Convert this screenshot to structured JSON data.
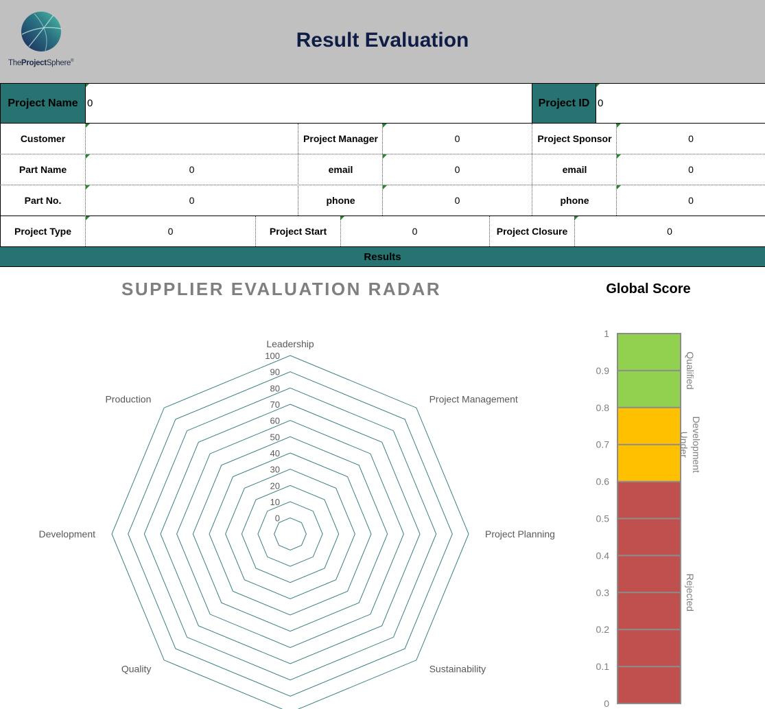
{
  "header": {
    "logo_text_prefix": "The",
    "logo_text_bold": "Project",
    "logo_text_suffix": "Sphere",
    "logo_mark": "®",
    "title": "Result Evaluation"
  },
  "project": {
    "name_label": "Project Name",
    "name_value": "0",
    "id_label": "Project ID",
    "id_value": "0"
  },
  "info_rows": [
    {
      "l1": "Customer",
      "v1": "",
      "l2": "Project Manager",
      "v2": "0",
      "l3": "Project Sponsor",
      "v3": "0"
    },
    {
      "l1": "Part Name",
      "v1": "0",
      "l2": "email",
      "v2": "0",
      "l3": "email",
      "v3": "0"
    },
    {
      "l1": "Part No.",
      "v1": "0",
      "l2": "phone",
      "v2": "0",
      "l3": "phone",
      "v3": "0"
    }
  ],
  "dates_row": {
    "type_label": "Project Type",
    "type_value": "0",
    "start_label": "Project Start",
    "start_value": "0",
    "closure_label": "Project Closure",
    "closure_value": "0"
  },
  "results_label": "Results",
  "colors": {
    "teal": "#267371",
    "header_gray": "#c0c0c0",
    "title_navy": "#0f1c45",
    "qualified": "#92d050",
    "under_development": "#ffc000",
    "rejected": "#c0504d",
    "radar_line": "#3b7f83"
  },
  "chart_data": [
    {
      "type": "radar",
      "title": "SUPPLIER EVALUATION RADAR",
      "categories": [
        "Leadership",
        "Project Management",
        "Project Planning",
        "Sustainability",
        "",
        "Quality",
        "Development",
        "Production"
      ],
      "axis_ticks": [
        0,
        10,
        20,
        30,
        40,
        50,
        60,
        70,
        80,
        90,
        100
      ],
      "ylim": [
        0,
        100
      ],
      "series": [],
      "grid": true
    },
    {
      "type": "bar",
      "title": "Global Score",
      "value": 0,
      "ylim": [
        0,
        1
      ],
      "y_ticks": [
        "0",
        "0.1",
        "0.2",
        "0.3",
        "0.4",
        "0.5",
        "0.6",
        "0.7",
        "0.8",
        "0.9",
        "1"
      ],
      "bands": [
        {
          "label": "Rejected",
          "from": 0,
          "to": 0.6,
          "color": "#c0504d"
        },
        {
          "label": "Under Development",
          "from": 0.6,
          "to": 0.8,
          "color": "#ffc000"
        },
        {
          "label": "Qualified",
          "from": 0.8,
          "to": 1,
          "color": "#92d050"
        }
      ]
    }
  ]
}
